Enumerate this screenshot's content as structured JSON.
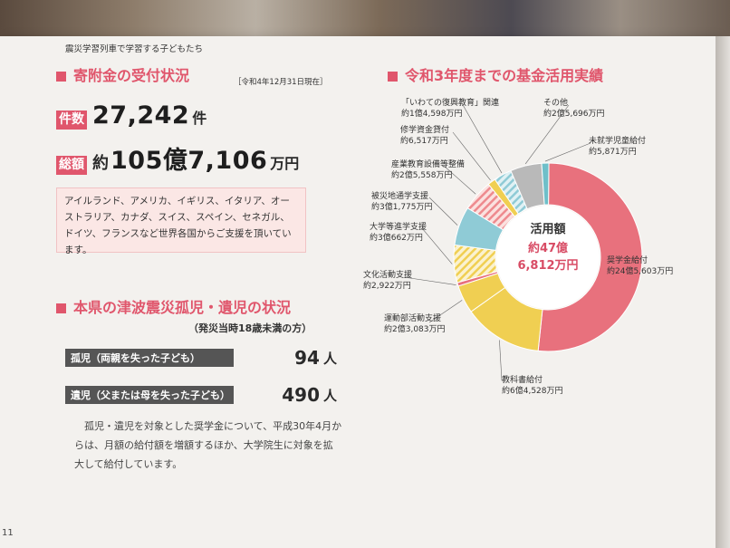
{
  "running_head": "震災学習列車で学習する子どもたち",
  "donation": {
    "heading": "寄附金の受付状況",
    "as_of": "［令和4年12月31日現在］",
    "count_label": "件数",
    "count_value": "27,242",
    "count_unit": "件",
    "total_label": "総額",
    "total_prefix": "約",
    "total_value": "105億7,106",
    "total_unit": "万円",
    "countries_text": "アイルランド、アメリカ、イギリス、イタリア、オーストラリア、カナダ、スイス、スペイン、セネガル、ドイツ、フランスなど世界各国からご支援を頂いています。"
  },
  "orphans": {
    "heading": "本県の津波震災孤児・遺児の状況",
    "subheading": "（発災当時18歳未満の方）",
    "rows": [
      {
        "label": "孤児（両親を失った子ども）",
        "value": "94",
        "unit": "人"
      },
      {
        "label": "遺児（父または母を失った子ども）",
        "value": "490",
        "unit": "人"
      }
    ],
    "paragraph": "孤児・遺児を対象とした奨学金について、平成30年4月からは、月額の給付額を増額するほか、大学院生に対象を拡大して給付しています。"
  },
  "fund": {
    "heading": "令和3年度までの基金活用実績",
    "center_title": "活用額",
    "center_line1": "約47億",
    "center_line2": "6,812万円"
  },
  "chart_data": {
    "type": "pie",
    "title": "令和3年度までの基金活用実績",
    "total": 476812,
    "unit": "万円",
    "slices": [
      {
        "name": "奨学金給付",
        "label": "約24億5,603万円",
        "value": 245603,
        "color": "#e8717d",
        "pattern": "solid"
      },
      {
        "name": "教科書給付",
        "label": "約6億4,528万円",
        "value": 64528,
        "color": "#f0cf52",
        "pattern": "solid"
      },
      {
        "name": "運動部活動支援",
        "label": "約2億3,083万円",
        "value": 23083,
        "color": "#f0cf52",
        "pattern": "solid"
      },
      {
        "name": "文化活動支援",
        "label": "約2,922万円",
        "value": 2922,
        "color": "#e8717d",
        "pattern": "solid"
      },
      {
        "name": "大学等進学支援",
        "label": "約3億662万円",
        "value": 30662,
        "color": "#f3dc8a",
        "pattern": "stripe"
      },
      {
        "name": "被災地通学支援",
        "label": "約3億1,775万円",
        "value": 31775,
        "color": "#8fcbd6",
        "pattern": "solid"
      },
      {
        "name": "産業教育設備等整備",
        "label": "約2億5,558万円",
        "value": 25558,
        "color": "#f2a3a5",
        "pattern": "stripe"
      },
      {
        "name": "修学資金貸付",
        "label": "約6,517万円",
        "value": 6517,
        "color": "#f0cf52",
        "pattern": "solid"
      },
      {
        "name": "「いわての復興教育」関連",
        "label": "約1億4,598万円",
        "value": 14598,
        "color": "#9fd3df",
        "pattern": "stripe"
      },
      {
        "name": "その他",
        "label": "約2億5,696万円",
        "value": 25696,
        "color": "#b9b9b9",
        "pattern": "solid"
      },
      {
        "name": "未就学児童給付",
        "label": "約5,871万円",
        "value": 5871,
        "color": "#6fbfc9",
        "pattern": "solid"
      }
    ]
  },
  "page_number": "11"
}
